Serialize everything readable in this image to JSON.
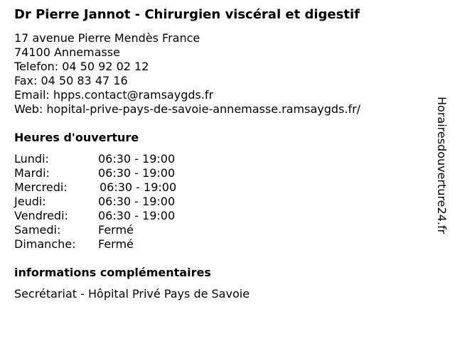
{
  "title": "Dr Pierre Jannot - Chirurgien viscéral et digestif",
  "address": [
    "17 avenue Pierre Mendès France",
    "74100 Annemasse",
    "Telefon: 04 50 92 02 12",
    "Fax: 04 50 83 47 16",
    "Email: hpps.contact@ramsaygds.fr",
    "Web: hopital-prive-pays-de-savoie-annemasse.ramsaygds.fr/"
  ],
  "hours_title": "Heures d'ouverture",
  "hours": [
    {
      "day": "Lundi:",
      "time": "06:30 - 19:00"
    },
    {
      "day": "Mardi:",
      "time": "06:30 - 19:00"
    },
    {
      "day": "Mercredi:",
      "time": "06:30 - 19:00"
    },
    {
      "day": "Jeudi:",
      "time": "06:30 - 19:00"
    },
    {
      "day": "Vendredi:",
      "time": "06:30 - 19:00"
    },
    {
      "day": "Samedi:",
      "time": "Fermé"
    },
    {
      "day": "Dimanche:",
      "time": "Fermé"
    }
  ],
  "info_title": "informations complémentaires",
  "info": "Secrétariat - Hôpital Privé Pays de Savoie",
  "watermark": "Horairesdouverture24.fr"
}
